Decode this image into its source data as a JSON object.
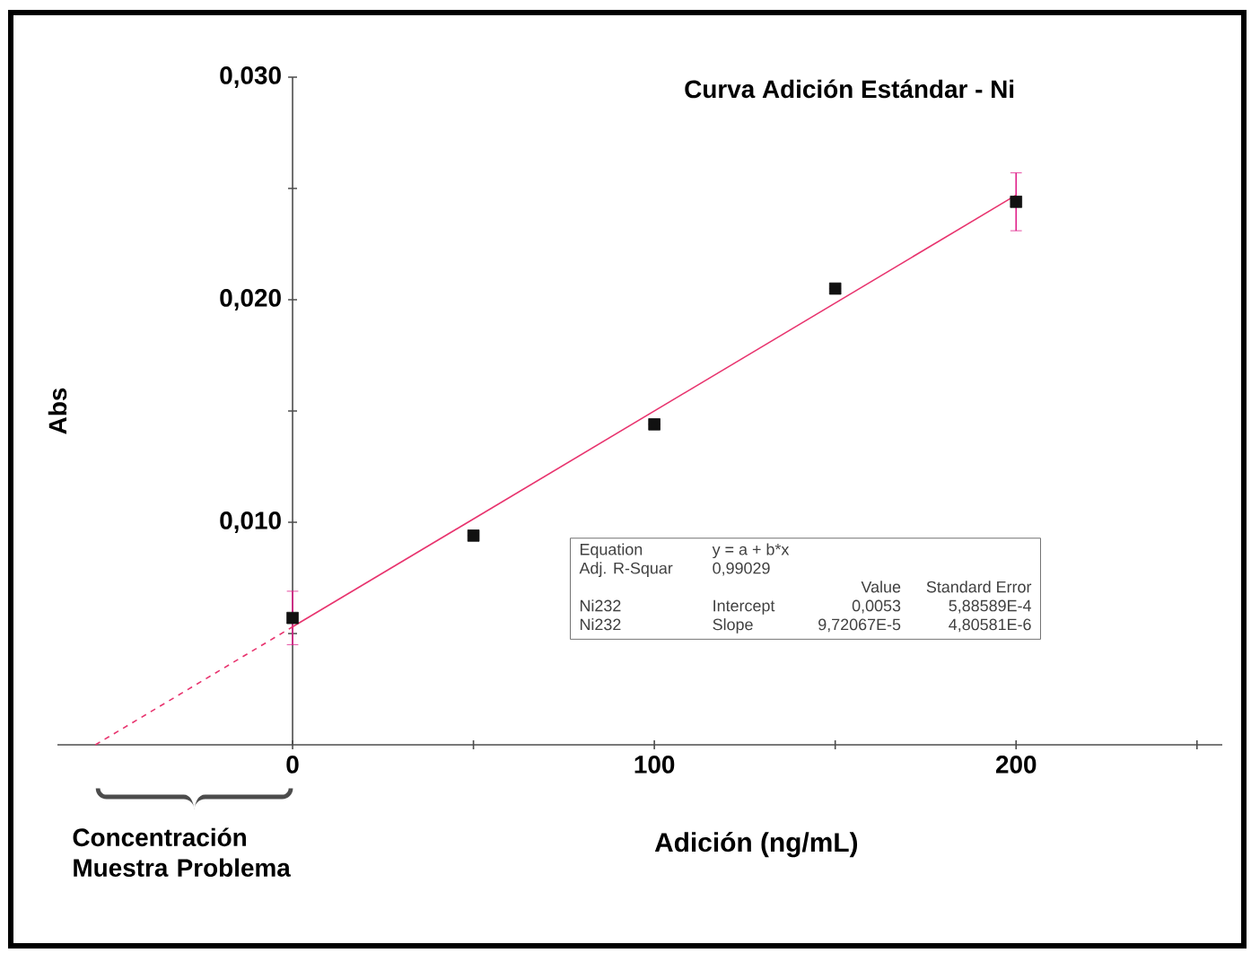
{
  "chart_data": {
    "type": "scatter",
    "title": "Curva Adición Estándar - Ni",
    "xlabel": "Adición (ng/mL)",
    "ylabel": "Abs",
    "xlim": [
      -65,
      257
    ],
    "ylim": [
      0,
      0.03
    ],
    "xticks": [
      0,
      {
        "value": 50,
        "label": null
      },
      100,
      {
        "value": 150,
        "label": null
      },
      200,
      {
        "value": 250,
        "label": null
      }
    ],
    "yticks": [
      {
        "value": 0.005,
        "label": null
      },
      {
        "value": 0.01,
        "label": "0,010"
      },
      {
        "value": 0.015,
        "label": null
      },
      {
        "value": 0.02,
        "label": "0,020"
      },
      {
        "value": 0.025,
        "label": null
      },
      {
        "value": 0.03,
        "label": "0,030"
      }
    ],
    "grid": false,
    "series": [
      {
        "color": "#111111",
        "marker": "square",
        "x": [
          0,
          50,
          100,
          150,
          200
        ],
        "values": [
          0.0057,
          0.0094,
          0.0144,
          0.0205,
          0.0244
        ],
        "errors": [
          0.0012,
          null,
          null,
          null,
          0.0013
        ]
      },
      {
        "type": "line",
        "color": "#e8336e",
        "marker": "none",
        "line_style": "solid",
        "x": [
          0,
          200
        ],
        "values": [
          0.0053,
          0.0247
        ]
      },
      {
        "type": "line",
        "color": "#e8336e",
        "marker": "none",
        "line_style": "dashed",
        "x": [
          -54.5,
          0
        ],
        "values": [
          0,
          0.0053
        ]
      }
    ],
    "annotations": [
      "Concentración Muestra Problema",
      "Equation",
      "y = a + b*x",
      "Adj. R-Squar",
      "0,99029",
      "Value",
      "Standard Error",
      "Ni232",
      "Intercept",
      "0,0053",
      "5,88589E-4",
      "Ni232",
      "Slope",
      "9,72067E-5",
      "4,80581E-6"
    ]
  }
}
